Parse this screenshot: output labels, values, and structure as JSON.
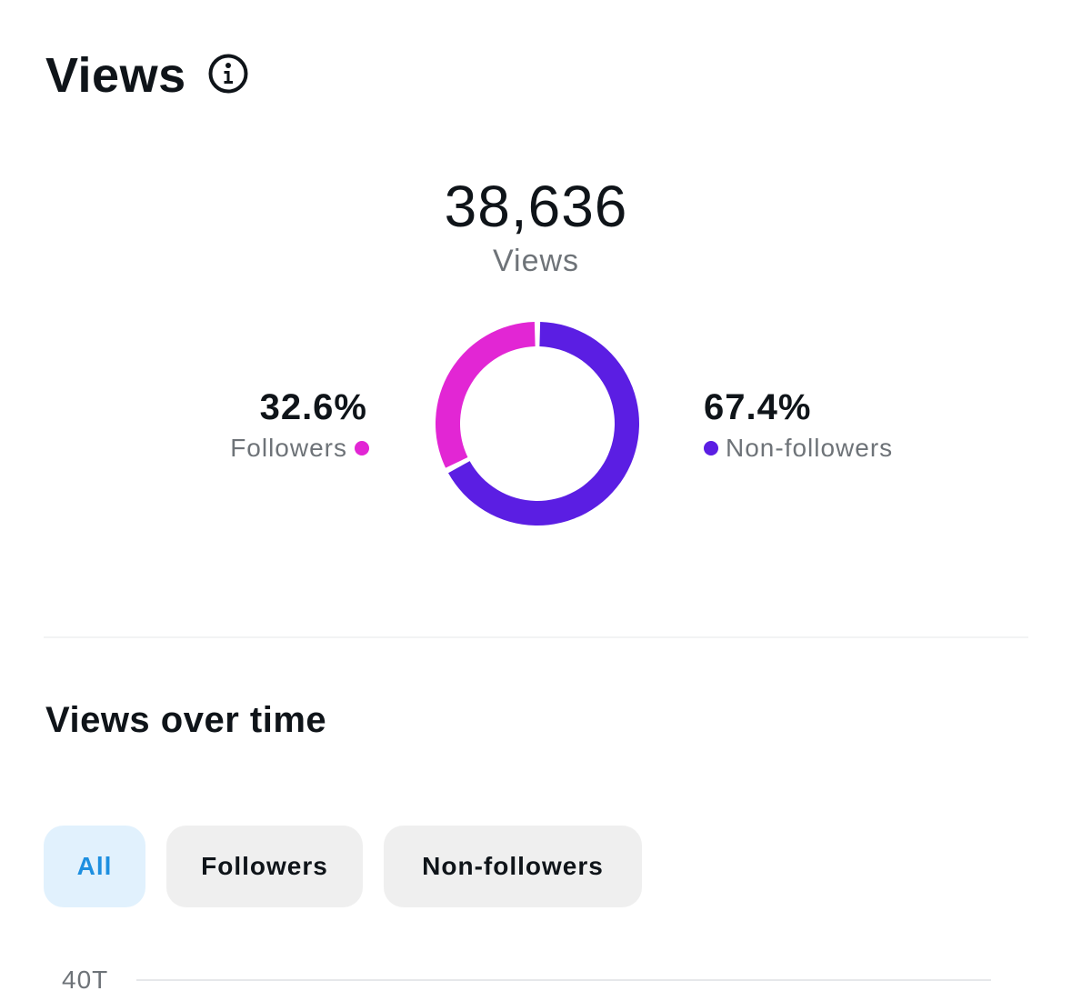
{
  "views_section": {
    "title": "Views",
    "total_value": "38,636",
    "total_label": "Views"
  },
  "chart_data": {
    "type": "pie",
    "categories": [
      "Followers",
      "Non-followers"
    ],
    "values": [
      32.6,
      67.4
    ],
    "value_labels": [
      "32.6%",
      "67.4%"
    ],
    "colors": [
      "#e226d4",
      "#5b1ee3"
    ]
  },
  "over_time": {
    "title": "Views over time",
    "filters": [
      {
        "label": "All",
        "selected": true
      },
      {
        "label": "Followers",
        "selected": false
      },
      {
        "label": "Non-followers",
        "selected": false
      }
    ],
    "y_tick": "40T"
  },
  "icons": {
    "info": "info-icon"
  }
}
